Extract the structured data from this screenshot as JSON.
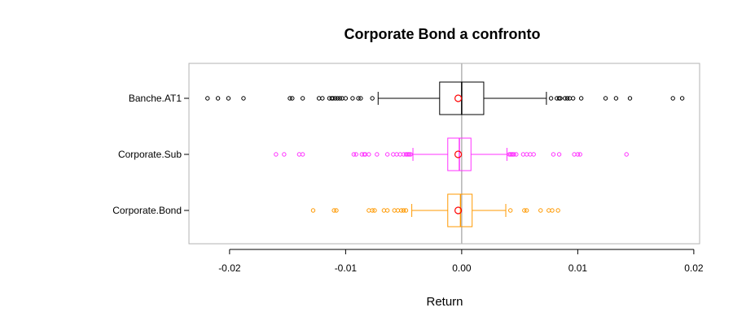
{
  "chart_data": {
    "type": "boxplot",
    "orientation": "horizontal",
    "title": "Corporate Bond a confronto",
    "xlabel": "Return",
    "ylabel": "",
    "xlim": [
      -0.0235,
      0.0205
    ],
    "x_ticks": [
      -0.02,
      -0.01,
      0.0,
      0.01,
      0.02
    ],
    "x_tick_labels": [
      "-0.02",
      "-0.01",
      "0.00",
      "0.01",
      "0.02"
    ],
    "reference_line_x": 0.0,
    "grid": false,
    "categories": [
      "Banche.AT1",
      "Corporate.Sub",
      "Corporate.Bond"
    ],
    "series": [
      {
        "name": "Banche.AT1",
        "color": "#000000",
        "whisker_low": -0.0072,
        "q1": -0.0019,
        "median": 0.0,
        "q3": 0.0019,
        "whisker_high": 0.0073,
        "mean": -0.0003,
        "outliers": [
          -0.0219,
          -0.021,
          -0.0201,
          -0.0188,
          -0.0148,
          -0.0146,
          -0.0137,
          -0.0123,
          -0.012,
          -0.0114,
          -0.0112,
          -0.0111,
          -0.0109,
          -0.0107,
          -0.0105,
          -0.0103,
          -0.01,
          -0.0094,
          -0.0089,
          -0.0087,
          -0.0077,
          0.0077,
          0.0082,
          0.0084,
          0.0085,
          0.0089,
          0.0091,
          0.0093,
          0.0096,
          0.0103,
          0.0124,
          0.0133,
          0.0145,
          0.0182,
          0.019
        ]
      },
      {
        "name": "Corporate.Sub",
        "color": "#ff33ff",
        "whisker_low": -0.0042,
        "q1": -0.0012,
        "median": -0.0002,
        "q3": 0.0008,
        "whisker_high": 0.0039,
        "mean": -0.0003,
        "outliers": [
          -0.016,
          -0.0153,
          -0.014,
          -0.0137,
          -0.0093,
          -0.0091,
          -0.0086,
          -0.0084,
          -0.0083,
          -0.008,
          -0.0073,
          -0.0064,
          -0.0059,
          -0.0056,
          -0.0053,
          -0.005,
          -0.0048,
          -0.0047,
          -0.0046,
          -0.0045,
          -0.0044,
          0.0041,
          0.0042,
          0.0043,
          0.0044,
          0.0045,
          0.0047,
          0.0053,
          0.0056,
          0.0059,
          0.0062,
          0.0079,
          0.0084,
          0.0097,
          0.01,
          0.0102,
          0.0142
        ]
      },
      {
        "name": "Corporate.Bond",
        "color": "#ff9900",
        "whisker_low": -0.0043,
        "q1": -0.0012,
        "median": -0.0001,
        "q3": 0.0009,
        "whisker_high": 0.0038,
        "mean": -0.0003,
        "outliers": [
          -0.0128,
          -0.011,
          -0.0108,
          -0.008,
          -0.0077,
          -0.0075,
          -0.0067,
          -0.0064,
          -0.0058,
          -0.0055,
          -0.0052,
          -0.005,
          -0.0048,
          0.0042,
          0.0054,
          0.0056,
          0.0068,
          0.0075,
          0.0078,
          0.0083
        ]
      }
    ],
    "mean_marker_color": "#ff0000",
    "reference_line_color": "#b3b3b3",
    "frame_color": "#b3b3b3"
  }
}
